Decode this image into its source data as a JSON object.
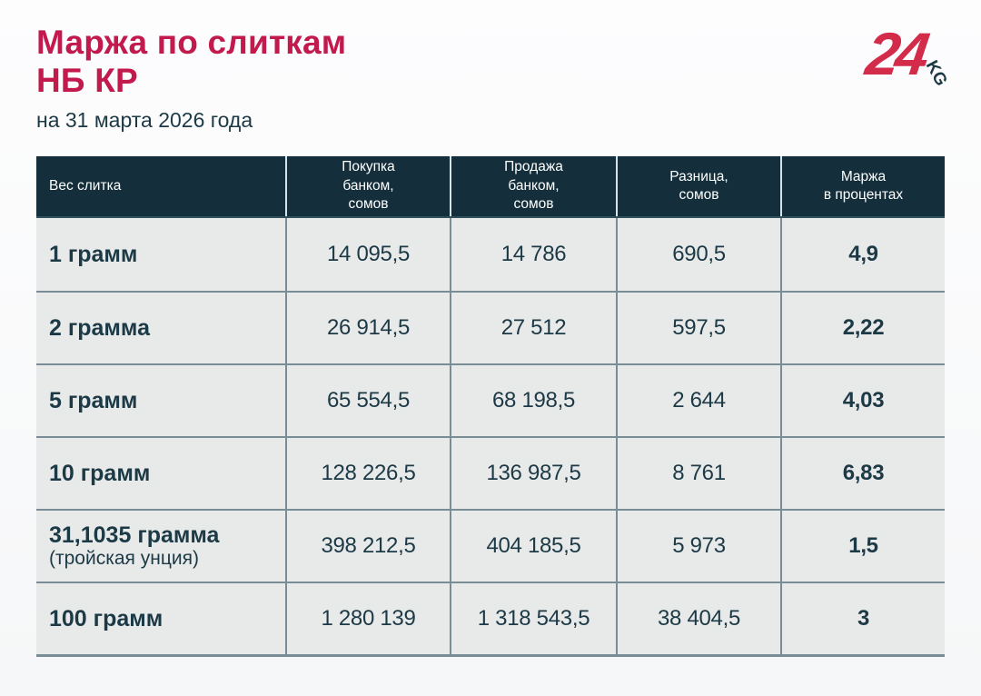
{
  "page": {
    "title": "Маржа по слиткам\nНБ КР",
    "subtitle": "на 31 марта 2026 года"
  },
  "logo": {
    "number": "24",
    "suffix": "KG",
    "red": "#d32b4a",
    "dark": "#1c3946"
  },
  "colors": {
    "title_red": "#c31a4e",
    "header_background": "#142f3b",
    "header_text": "#ffffff",
    "row_background": "#e8e9e9",
    "grid_line": "#7a8d97",
    "header_divider": "#d5e4e8",
    "body_text": "#1c3946"
  },
  "table": {
    "columns": [
      {
        "label": "Вес слитка"
      },
      {
        "label": "Покупка\nбанком,\nсомов"
      },
      {
        "label": "Продажа\nбанком,\nсомов"
      },
      {
        "label": "Разница,\nсомов"
      },
      {
        "label": "Маржа\nв процентах"
      }
    ],
    "rows": [
      {
        "weight": "1 грамм",
        "note": "",
        "buy": "14 095,5",
        "sell": "14 786",
        "diff": "690,5",
        "margin": "4,9"
      },
      {
        "weight": "2 грамма",
        "note": "",
        "buy": "26 914,5",
        "sell": "27 512",
        "diff": "597,5",
        "margin": "2,22"
      },
      {
        "weight": "5 грамм",
        "note": "",
        "buy": "65 554,5",
        "sell": "68 198,5",
        "diff": "2 644",
        "margin": "4,03"
      },
      {
        "weight": "10 грамм",
        "note": "",
        "buy": "128 226,5",
        "sell": "136 987,5",
        "diff": "8 761",
        "margin": "6,83"
      },
      {
        "weight": "31,1035 грамма",
        "note": "(тройская унция)",
        "buy": "398 212,5",
        "sell": "404 185,5",
        "diff": "5 973",
        "margin": "1,5"
      },
      {
        "weight": "100 грамм",
        "note": "",
        "buy": "1 280 139",
        "sell": "1 318 543,5",
        "diff": "38 404,5",
        "margin": "3"
      }
    ]
  },
  "chart_data": {
    "type": "table",
    "title": "Маржа по слиткам НБ КР",
    "subtitle": "на 31 марта 2026 года",
    "columns": [
      "Вес слитка",
      "Покупка банком, сомов",
      "Продажа банком, сомов",
      "Разница, сомов",
      "Маржа в процентах"
    ],
    "rows": [
      [
        "1 грамм",
        14095.5,
        14786,
        690.5,
        4.9
      ],
      [
        "2 грамма",
        26914.5,
        27512,
        597.5,
        2.22
      ],
      [
        "5 грамм",
        65554.5,
        68198.5,
        2644,
        4.03
      ],
      [
        "10 грамм",
        128226.5,
        136987.5,
        8761,
        6.83
      ],
      [
        "31,1035 грамма (тройская унция)",
        398212.5,
        404185.5,
        5973,
        1.5
      ],
      [
        "100 грамм",
        1280139,
        1318543.5,
        38404.5,
        3
      ]
    ]
  }
}
